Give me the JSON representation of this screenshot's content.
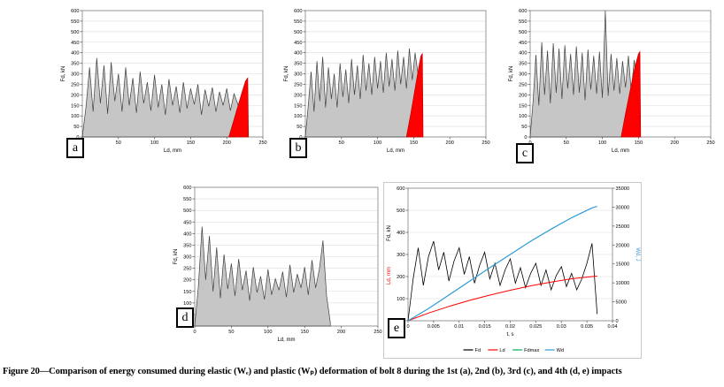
{
  "figure": {
    "caption": "Figure 20—Comparison of energy consumed during elastic (Wₑ) and plastic (Wₚ) deformation of bolt 8 during the 1st (a), 2nd (b), 3rd (c), and 4th (d, e) impacts"
  },
  "colors": {
    "area_fill": "#c6c6c6",
    "area_stroke": "#3f3f3f",
    "elastic_fill": "#ff0000",
    "wd_blue": "#2e9bd6"
  },
  "chart_data": [
    {
      "key": "a",
      "label": "a",
      "type": "area",
      "xlabel": "Ld, mm",
      "ylabel": "Fd, kN",
      "xmin": 0,
      "xmax": 250,
      "xtick": 50,
      "ymin": 0,
      "ymax": 600,
      "ytick": 50,
      "series": [
        {
          "name": "force-displacement",
          "type": "area",
          "color": "#3f3f3f",
          "fill": "#c6c6c6",
          "x0": 0,
          "xstep": 5,
          "values": [
            0,
            140,
            330,
            120,
            375,
            160,
            340,
            110,
            355,
            170,
            300,
            120,
            330,
            150,
            280,
            115,
            310,
            160,
            260,
            125,
            295,
            140,
            250,
            105,
            275,
            150,
            240,
            115,
            260,
            135,
            230,
            155,
            250,
            105,
            225,
            145,
            235,
            120,
            215,
            150,
            230,
            125,
            205,
            160,
            95
          ]
        },
        {
          "name": "elastic-recovery",
          "type": "area",
          "color": "#c00000",
          "fill": "#ff0000",
          "points": [
            [
              203,
              0
            ],
            [
              209,
              70
            ],
            [
              215,
              140
            ],
            [
              221,
              210
            ],
            [
              226,
              265
            ],
            [
              229,
              280
            ],
            [
              230,
              0
            ]
          ]
        }
      ]
    },
    {
      "key": "b",
      "label": "b",
      "type": "area",
      "xlabel": "Ld, mm",
      "ylabel": "Fd, kN",
      "xmin": 0,
      "xmax": 250,
      "xtick": 50,
      "ymin": 0,
      "ymax": 600,
      "ytick": 50,
      "series": [
        {
          "name": "force-displacement",
          "type": "area",
          "color": "#3f3f3f",
          "fill": "#c6c6c6",
          "x0": 0,
          "xstep": 4,
          "values": [
            0,
            150,
            310,
            120,
            360,
            170,
            380,
            140,
            330,
            180,
            300,
            140,
            350,
            190,
            320,
            160,
            370,
            200,
            340,
            180,
            390,
            220,
            350,
            200,
            380,
            230,
            360,
            210,
            400,
            240,
            370,
            220,
            410,
            250,
            380,
            230,
            420,
            270,
            400,
            300,
            180
          ]
        },
        {
          "name": "elastic-recovery",
          "type": "area",
          "color": "#c00000",
          "fill": "#ff0000",
          "points": [
            [
              140,
              0
            ],
            [
              146,
              110
            ],
            [
              152,
              230
            ],
            [
              157,
              330
            ],
            [
              160,
              385
            ],
            [
              162,
              395
            ],
            [
              163,
              0
            ]
          ]
        }
      ]
    },
    {
      "key": "c",
      "label": "c",
      "type": "area",
      "xlabel": "Ld, mm",
      "ylabel": "Fd, kN",
      "xmin": 0,
      "xmax": 250,
      "xtick": 50,
      "ymin": 0,
      "ymax": 600,
      "ytick": 50,
      "series": [
        {
          "name": "force-displacement",
          "type": "area",
          "color": "#3f3f3f",
          "fill": "#c6c6c6",
          "x0": 0,
          "xstep": 4,
          "values": [
            0,
            170,
            390,
            150,
            450,
            200,
            410,
            160,
            445,
            210,
            420,
            180,
            435,
            230,
            395,
            200,
            430,
            210,
            400,
            175,
            415,
            225,
            385,
            205,
            405,
            185,
            600,
            195,
            395,
            220,
            375,
            205,
            360,
            235,
            385,
            215,
            365,
            260,
            130
          ]
        },
        {
          "name": "elastic-recovery",
          "type": "area",
          "color": "#c00000",
          "fill": "#ff0000",
          "points": [
            [
              126,
              0
            ],
            [
              132,
              110
            ],
            [
              139,
              230
            ],
            [
              145,
              330
            ],
            [
              150,
              395
            ],
            [
              152,
              405
            ],
            [
              153,
              0
            ]
          ]
        }
      ]
    },
    {
      "key": "d",
      "label": "d",
      "type": "area",
      "xlabel": "Ld, mm",
      "ylabel": "Fd, kN",
      "xmin": 0,
      "xmax": 250,
      "xtick": 50,
      "ymin": 0,
      "ymax": 600,
      "ytick": 50,
      "series": [
        {
          "name": "force-displacement",
          "type": "area",
          "color": "#3f3f3f",
          "fill": "#c6c6c6",
          "x0": 0,
          "xstep": 5,
          "values": [
            0,
            170,
            430,
            200,
            390,
            150,
            340,
            120,
            310,
            160,
            270,
            130,
            290,
            155,
            240,
            110,
            255,
            145,
            215,
            115,
            245,
            135,
            205,
            155,
            235,
            125,
            265,
            145,
            225,
            165,
            255,
            135,
            285,
            165,
            245,
            370,
            130,
            15
          ]
        }
      ]
    },
    {
      "key": "e",
      "label": "e",
      "type": "line",
      "xlabel": "t, s",
      "ylabel": "Fd, kN",
      "ylabel2": "Ld, mm",
      "ylabel2_color": "#ff0000",
      "y2label": "Wd, J",
      "y2label_color": "#2e9bd6",
      "xmin": 0,
      "xmax": 0.04,
      "xtick": 0.005,
      "ymin": 0,
      "ymax": 600,
      "ytick": 100,
      "y2min": 0,
      "y2max": 35000,
      "y2tick": 5000,
      "series": [
        {
          "name": "Fd",
          "type": "line",
          "color": "#000000",
          "width": 0.8,
          "x0": 0,
          "xstep": 0.001,
          "values": [
            0,
            190,
            330,
            160,
            290,
            360,
            230,
            310,
            180,
            270,
            330,
            210,
            290,
            170,
            250,
            310,
            190,
            260,
            160,
            230,
            280,
            170,
            240,
            150,
            215,
            260,
            160,
            230,
            140,
            205,
            245,
            155,
            215,
            140,
            190,
            260,
            350,
            30
          ]
        },
        {
          "name": "Ld",
          "type": "line",
          "color": "#ff0000",
          "width": 1,
          "points": [
            [
              0,
              0
            ],
            [
              0.004,
              35
            ],
            [
              0.008,
              65
            ],
            [
              0.012,
              92
            ],
            [
              0.016,
              116
            ],
            [
              0.02,
              138
            ],
            [
              0.024,
              158
            ],
            [
              0.028,
              175
            ],
            [
              0.032,
              190
            ],
            [
              0.036,
              200
            ],
            [
              0.037,
              202
            ]
          ]
        },
        {
          "name": "Wd",
          "type": "line",
          "color": "#2e9bd6",
          "width": 1.2,
          "axis": "y2",
          "points": [
            [
              0,
              0
            ],
            [
              0.004,
              3200
            ],
            [
              0.008,
              6800
            ],
            [
              0.012,
              10400
            ],
            [
              0.016,
              14000
            ],
            [
              0.02,
              17500
            ],
            [
              0.024,
              21000
            ],
            [
              0.028,
              24200
            ],
            [
              0.032,
              27200
            ],
            [
              0.036,
              29800
            ],
            [
              0.037,
              30200
            ]
          ]
        }
      ],
      "legend": [
        {
          "label": "Fd",
          "color": "#000000"
        },
        {
          "label": "Ld",
          "color": "#ff0000"
        },
        {
          "label": "Fdmax",
          "color": "#00b050"
        },
        {
          "label": "Wd",
          "color": "#2e9bd6"
        }
      ]
    }
  ]
}
